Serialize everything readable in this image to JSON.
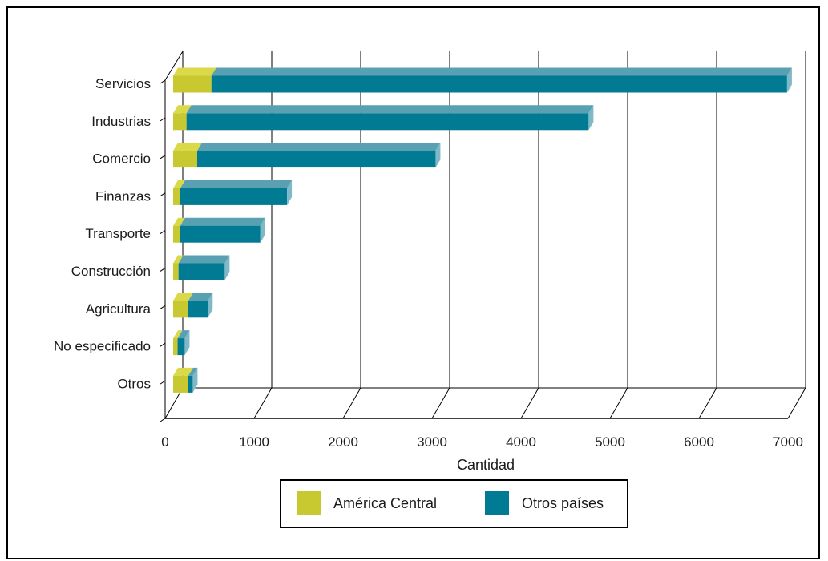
{
  "chart_data": {
    "type": "bar",
    "orientation": "horizontal",
    "stacked": true,
    "three_d": true,
    "categories": [
      "Servicios",
      "Industrias",
      "Comercio",
      "Finanzas",
      "Transporte",
      "Construcción",
      "Agricultura",
      "No especificado",
      "Otros"
    ],
    "series": [
      {
        "name": "América Central",
        "color": "#c8c830",
        "values": [
          430,
          150,
          270,
          80,
          80,
          60,
          170,
          50,
          170
        ]
      },
      {
        "name": "Otros países",
        "color": "#007b93",
        "values": [
          6470,
          4520,
          2680,
          1200,
          900,
          520,
          220,
          80,
          50
        ]
      }
    ],
    "xlabel": "Cantidad",
    "xlim": [
      0,
      7000
    ],
    "xticks": [
      "0",
      "1000",
      "2000",
      "3000",
      "4000",
      "5000",
      "6000",
      "7000"
    ],
    "grid": true,
    "legend_position": "bottom"
  }
}
